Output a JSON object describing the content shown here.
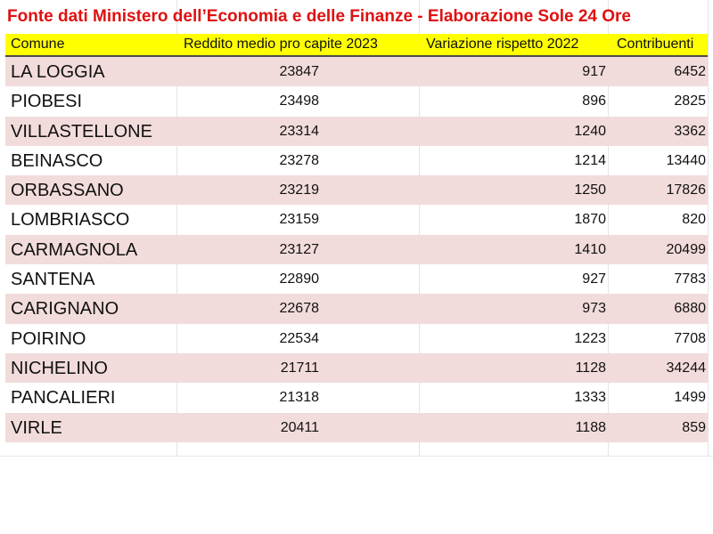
{
  "title": "Fonte dati Ministero dell’Economia e delle Finanze - Elaborazione Sole 24 Ore",
  "columns": {
    "comune": "Comune",
    "reddito": "Reddito medio pro capite 2023",
    "variazione": "Variazione rispetto 2022",
    "contribuenti": "Contribuenti"
  },
  "colors": {
    "title": "#e01010",
    "header_bg": "#ffff00",
    "row_shade": "#f2dcdb"
  },
  "rows": [
    {
      "comune": "LA LOGGIA",
      "reddito": "23847",
      "variazione": "917",
      "contribuenti": "6452"
    },
    {
      "comune": "PIOBESI",
      "reddito": "23498",
      "variazione": "896",
      "contribuenti": "2825"
    },
    {
      "comune": "VILLASTELLONE",
      "reddito": "23314",
      "variazione": "1240",
      "contribuenti": "3362"
    },
    {
      "comune": "BEINASCO",
      "reddito": "23278",
      "variazione": "1214",
      "contribuenti": "13440"
    },
    {
      "comune": "ORBASSANO",
      "reddito": "23219",
      "variazione": "1250",
      "contribuenti": "17826"
    },
    {
      "comune": "LOMBRIASCO",
      "reddito": "23159",
      "variazione": "1870",
      "contribuenti": "820"
    },
    {
      "comune": "CARMAGNOLA",
      "reddito": "23127",
      "variazione": "1410",
      "contribuenti": "20499"
    },
    {
      "comune": "SANTENA",
      "reddito": "22890",
      "variazione": "927",
      "contribuenti": "7783"
    },
    {
      "comune": "CARIGNANO",
      "reddito": "22678",
      "variazione": "973",
      "contribuenti": "6880"
    },
    {
      "comune": "POIRINO",
      "reddito": "22534",
      "variazione": "1223",
      "contribuenti": "7708"
    },
    {
      "comune": "NICHELINO",
      "reddito": "21711",
      "variazione": "1128",
      "contribuenti": "34244"
    },
    {
      "comune": "PANCALIERI",
      "reddito": "21318",
      "variazione": "1333",
      "contribuenti": "1499"
    },
    {
      "comune": "VIRLE",
      "reddito": "20411",
      "variazione": "1188",
      "contribuenti": "859"
    }
  ]
}
